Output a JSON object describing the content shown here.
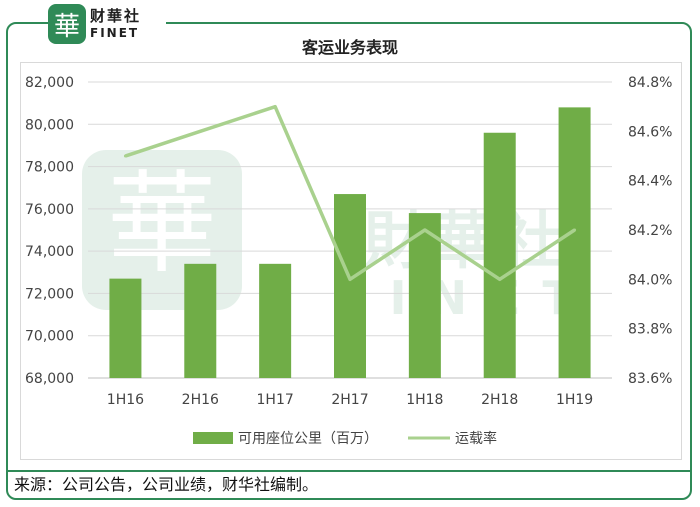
{
  "header": {
    "logo_glyph": "華",
    "logo_cn": "财華社",
    "logo_en": "FINET"
  },
  "watermark": {
    "glyph": "華",
    "cn": "財華社",
    "en": "FINET"
  },
  "footer": {
    "source": "来源：公司公告，公司业绩，财华社编制。"
  },
  "colors": {
    "bar": "#70ad47",
    "line": "#a9d18e",
    "frame": "#2f8a57"
  },
  "chart_data": {
    "type": "bar",
    "title": "客运业务表现",
    "categories": [
      "1H16",
      "2H16",
      "1H17",
      "2H17",
      "1H18",
      "2H18",
      "1H19"
    ],
    "series": [
      {
        "name": "可用座位公里（百万）",
        "type": "bar",
        "axis": "left",
        "values": [
          72700,
          73400,
          73400,
          76700,
          75800,
          79600,
          80800
        ]
      },
      {
        "name": "运载率",
        "type": "line",
        "axis": "right",
        "values": [
          84.5,
          84.6,
          84.7,
          84.0,
          84.2,
          84.0,
          84.2
        ]
      }
    ],
    "ylim_left": [
      68000,
      82000
    ],
    "yticks_left": [
      "68,000",
      "70,000",
      "72,000",
      "74,000",
      "76,000",
      "78,000",
      "80,000",
      "82,000"
    ],
    "ylim_right": [
      83.6,
      84.8
    ],
    "yticks_right": [
      "83.6%",
      "83.8%",
      "84.0%",
      "84.2%",
      "84.4%",
      "84.6%",
      "84.8%"
    ],
    "grid": true,
    "legend": "bottom"
  }
}
